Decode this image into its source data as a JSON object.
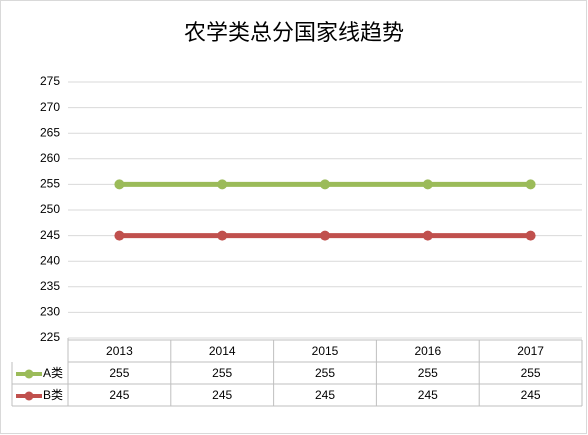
{
  "chart_data": {
    "type": "line",
    "title": "农学类总分国家线趋势",
    "categories": [
      "2013",
      "2014",
      "2015",
      "2016",
      "2017"
    ],
    "series": [
      {
        "name": "A类",
        "color": "#9bbb59",
        "values": [
          255,
          255,
          255,
          255,
          255
        ]
      },
      {
        "name": "B类",
        "color": "#c0504d",
        "values": [
          245,
          245,
          245,
          245,
          245
        ]
      }
    ],
    "ylim": [
      225,
      275
    ],
    "yticks": [
      225,
      230,
      235,
      240,
      245,
      250,
      255,
      260,
      265,
      270,
      275
    ],
    "grid": true
  }
}
